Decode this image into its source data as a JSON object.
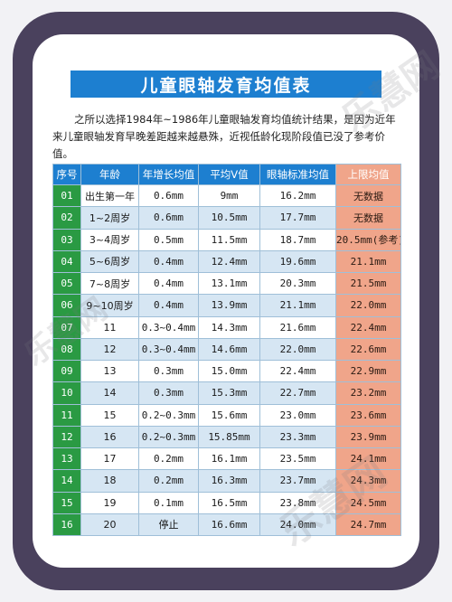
{
  "title": "儿童眼轴发育均值表",
  "intro": "之所以选择1984年~1986年儿童眼轴发育均值统计结果，是因为近年来儿童眼轴发育早晚差距越来越悬殊，近视低龄化现阶段值已没了参考价值。",
  "columns": [
    "序号",
    "年龄",
    "年增长均值",
    "平均V值",
    "眼轴标准均值",
    "上限均值"
  ],
  "rows": [
    [
      "01",
      "出生第一年",
      "0.6mm",
      "9mm",
      "16.2mm",
      "无数据"
    ],
    [
      "02",
      "1~2周岁",
      "0.6mm",
      "10.5mm",
      "17.7mm",
      "无数据"
    ],
    [
      "03",
      "3~4周岁",
      "0.5mm",
      "11.5mm",
      "18.7mm",
      "20.5mm(参考)"
    ],
    [
      "04",
      "5~6周岁",
      "0.4mm",
      "12.4mm",
      "19.6mm",
      "21.1mm"
    ],
    [
      "05",
      "7~8周岁",
      "0.4mm",
      "13.1mm",
      "20.3mm",
      "21.5mm"
    ],
    [
      "06",
      "9~10周岁",
      "0.4mm",
      "13.9mm",
      "21.1mm",
      "22.0mm"
    ],
    [
      "07",
      "11",
      "0.3~0.4mm",
      "14.3mm",
      "21.6mm",
      "22.4mm"
    ],
    [
      "08",
      "12",
      "0.3~0.4mm",
      "14.6mm",
      "22.0mm",
      "22.6mm"
    ],
    [
      "09",
      "13",
      "0.3mm",
      "15.0mm",
      "22.4mm",
      "22.9mm"
    ],
    [
      "10",
      "14",
      "0.3mm",
      "15.3mm",
      "22.7mm",
      "23.2mm"
    ],
    [
      "11",
      "15",
      "0.2~0.3mm",
      "15.6mm",
      "23.0mm",
      "23.6mm"
    ],
    [
      "12",
      "16",
      "0.2~0.3mm",
      "15.85mm",
      "23.3mm",
      "23.9mm"
    ],
    [
      "13",
      "17",
      "0.2mm",
      "16.1mm",
      "23.5mm",
      "24.1mm"
    ],
    [
      "14",
      "18",
      "0.2mm",
      "16.3mm",
      "23.7mm",
      "24.3mm"
    ],
    [
      "15",
      "19",
      "0.1mm",
      "16.5mm",
      "23.8mm",
      "24.5mm"
    ],
    [
      "16",
      "20",
      "停止",
      "16.6mm",
      "24.0mm",
      "24.7mm"
    ]
  ],
  "watermark": "乐慧网",
  "colors": {
    "frame": "#4a415d",
    "header": "#1d7fd0",
    "index": "#2a9a43",
    "limit": "#f0a58a",
    "stripe": "#d6e6f3"
  }
}
